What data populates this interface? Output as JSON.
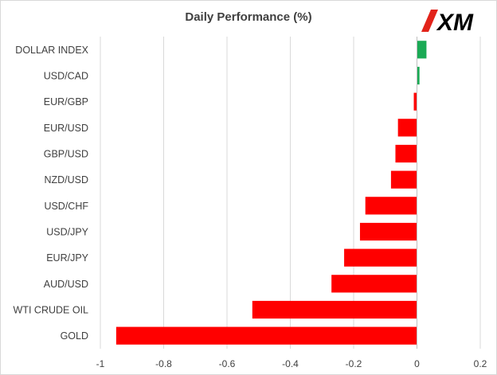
{
  "chart_data": {
    "type": "bar",
    "orientation": "horizontal",
    "title": "Daily Performance (%)",
    "xlabel": "",
    "ylabel": "",
    "xlim": [
      -1,
      0.2
    ],
    "x_ticks": [
      -1,
      -0.8,
      -0.6,
      -0.4,
      -0.2,
      0,
      0.2
    ],
    "x_tick_labels": [
      "-1",
      "-0.8",
      "-0.6",
      "-0.4",
      "-0.2",
      "0",
      "0.2"
    ],
    "grid": "vertical",
    "legend": "none",
    "categories": [
      "DOLLAR INDEX",
      "USD/CAD",
      "EUR/GBP",
      "EUR/USD",
      "GBP/USD",
      "NZD/USD",
      "USD/CHF",
      "USD/JPY",
      "EUR/JPY",
      "AUD/USD",
      "WTI CRUDE OIL",
      "GOLD"
    ],
    "values": [
      0.03,
      0.008,
      -0.01,
      -0.06,
      -0.068,
      -0.082,
      -0.163,
      -0.18,
      -0.23,
      -0.27,
      -0.52,
      -0.95
    ],
    "colors": {
      "positive": "#1aaa55",
      "negative": "#ff0000",
      "grid": "#d9d9d9",
      "axis": "#bfbfbf",
      "text": "#404040"
    }
  },
  "logo": {
    "text": "XM",
    "accent_color": "#e2231a"
  }
}
